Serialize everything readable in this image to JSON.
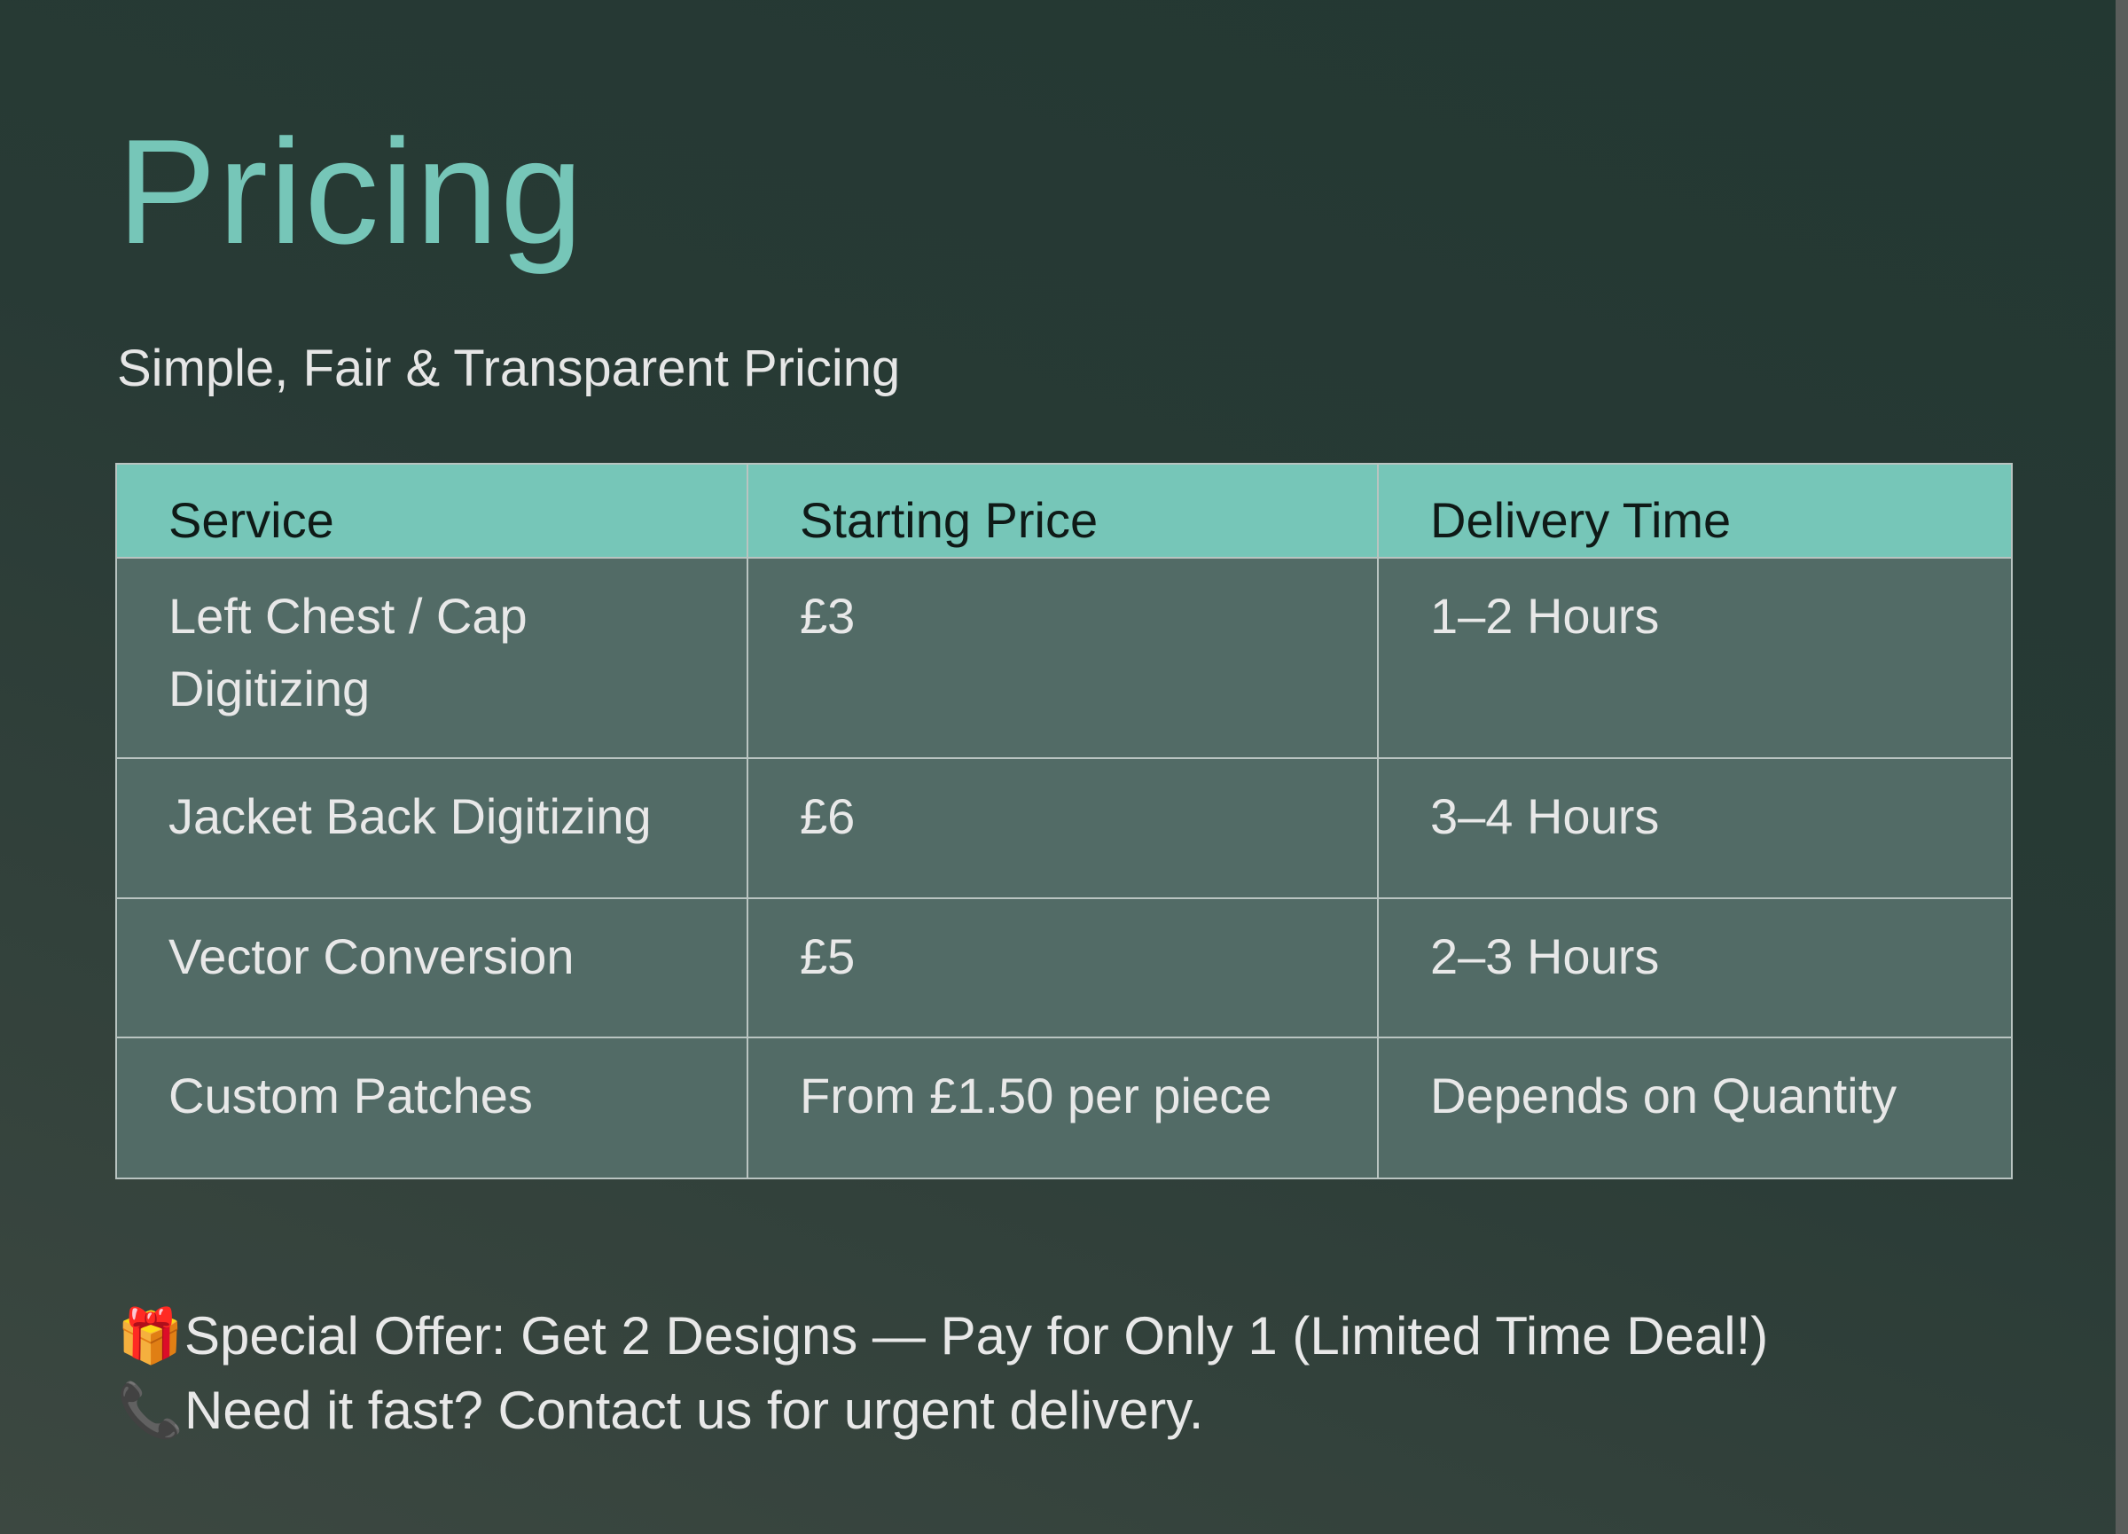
{
  "title": "Pricing",
  "subtitle": "Simple, Fair & Transparent Pricing",
  "table": {
    "headers": [
      "Service",
      "Starting Price",
      "Delivery Time"
    ],
    "rows": [
      [
        "Left Chest / Cap Digitizing",
        "£3",
        "1–2 Hours"
      ],
      [
        "Jacket Back Digitizing",
        "£6",
        "3–4 Hours"
      ],
      [
        "Vector Conversion",
        "£5",
        "2–3 Hours"
      ],
      [
        "Custom Patches",
        "From £1.50 per piece",
        "Depends on Quantity"
      ]
    ]
  },
  "notes": [
    {
      "icon": "gift-icon",
      "emoji": "🎁",
      "text": "Special Offer: Get 2 Designs — Pay for Only 1 (Limited Time Deal!)"
    },
    {
      "icon": "telephone-icon",
      "emoji": "📞",
      "text": "Need it fast? Contact us for urgent delivery."
    }
  ],
  "colors": {
    "accent": "#76c6b8",
    "row_bg": "#526b66"
  }
}
